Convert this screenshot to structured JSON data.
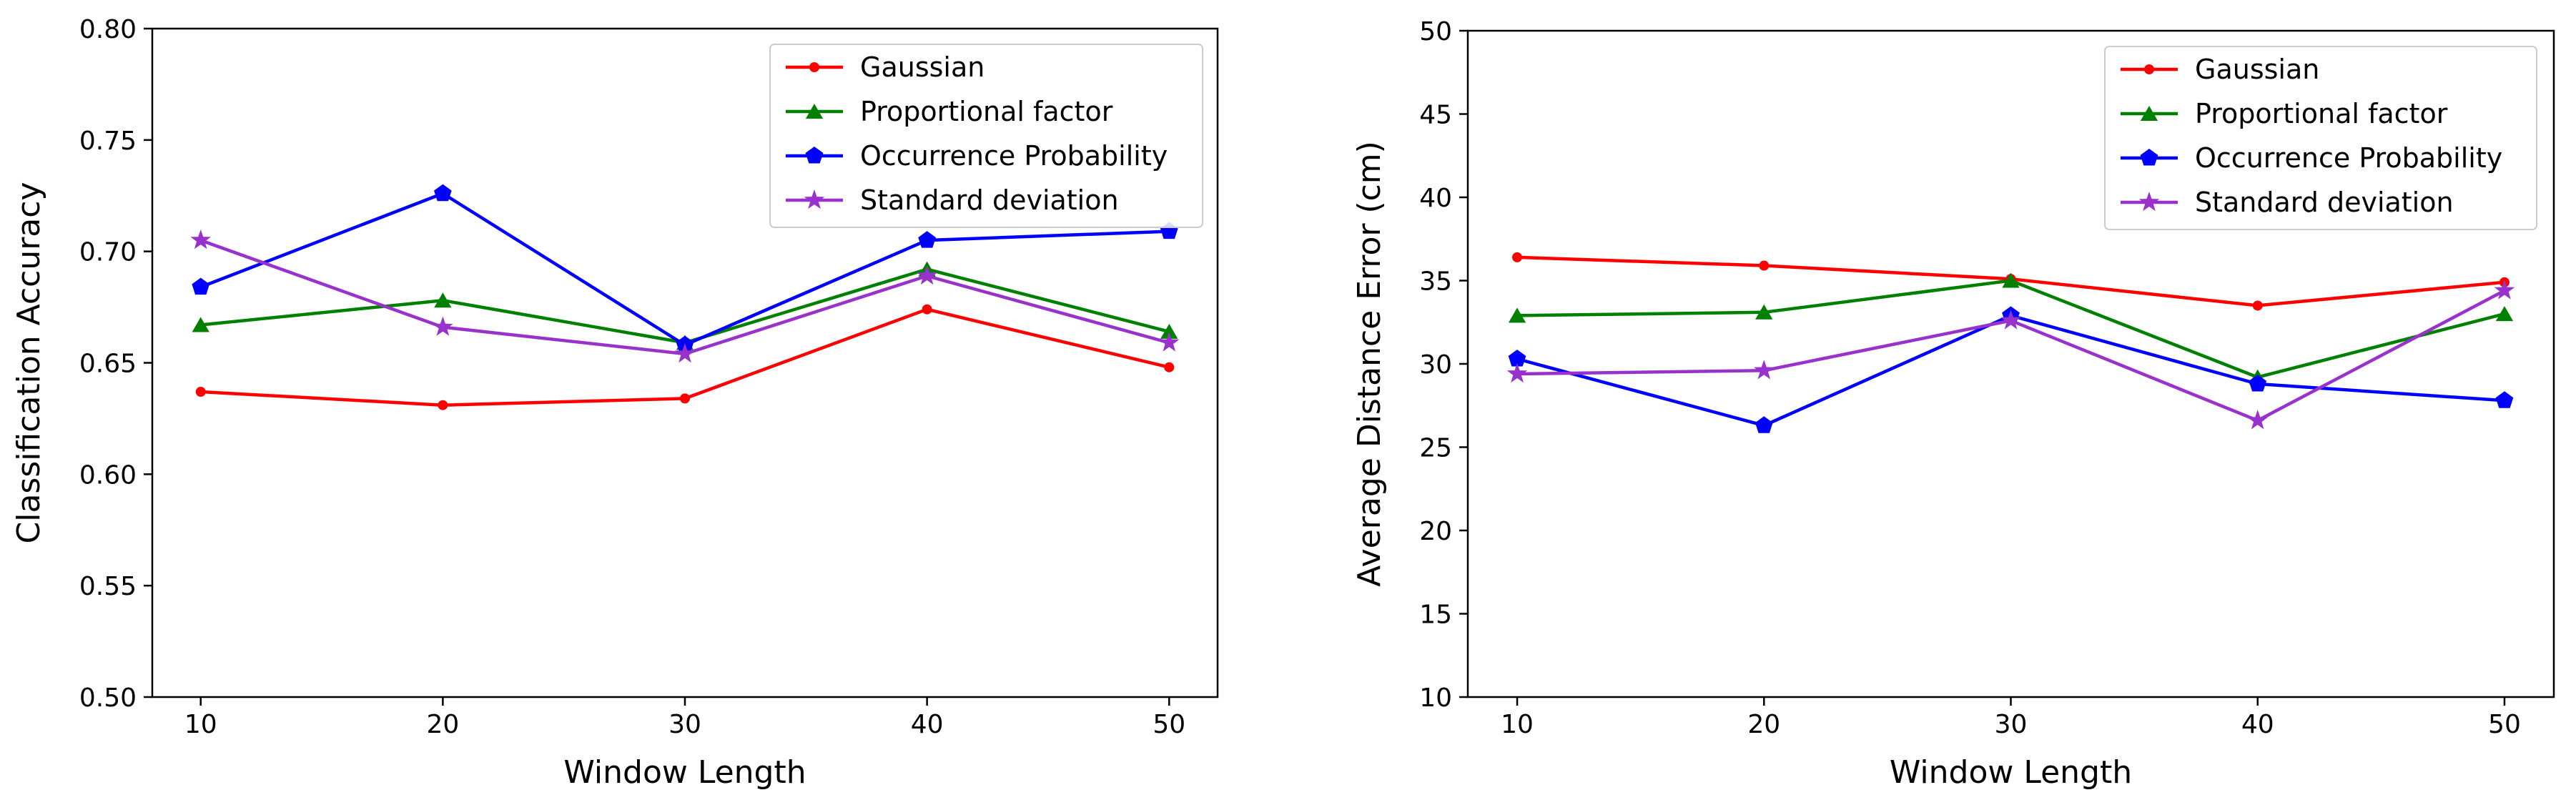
{
  "chart_data": [
    {
      "type": "line",
      "title": "",
      "xlabel": "Window Length",
      "ylabel": "Classification Accuracy",
      "x": [
        10,
        20,
        30,
        40,
        50
      ],
      "xticks": [
        "10",
        "20",
        "30",
        "40",
        "50"
      ],
      "xlim": [
        8,
        52
      ],
      "ylim": [
        0.5,
        0.8
      ],
      "yticks": [
        "0.50",
        "0.55",
        "0.60",
        "0.65",
        "0.70",
        "0.75",
        "0.80"
      ],
      "grid": false,
      "legend_position": "top-right",
      "series": [
        {
          "name": "Gaussian",
          "color": "#ff0000",
          "marker": "circle",
          "values": [
            0.637,
            0.631,
            0.634,
            0.674,
            0.648
          ]
        },
        {
          "name": "Proportional factor",
          "color": "#008000",
          "marker": "triangle",
          "values": [
            0.667,
            0.678,
            0.659,
            0.692,
            0.664
          ]
        },
        {
          "name": "Occurrence Probability",
          "color": "#0000ff",
          "marker": "pentagon",
          "values": [
            0.684,
            0.726,
            0.658,
            0.705,
            0.709
          ]
        },
        {
          "name": "Standard deviation",
          "color": "#9932cc",
          "marker": "star",
          "values": [
            0.705,
            0.666,
            0.654,
            0.689,
            0.659
          ]
        }
      ]
    },
    {
      "type": "line",
      "title": "",
      "xlabel": "Window Length",
      "ylabel": "Average Distance Error (cm)",
      "x": [
        10,
        20,
        30,
        40,
        50
      ],
      "xticks": [
        "10",
        "20",
        "30",
        "40",
        "50"
      ],
      "xlim": [
        8,
        52
      ],
      "ylim": [
        10,
        50
      ],
      "yticks": [
        "10",
        "15",
        "20",
        "25",
        "30",
        "35",
        "40",
        "45",
        "50"
      ],
      "grid": false,
      "legend_position": "top-right",
      "series": [
        {
          "name": "Gaussian",
          "color": "#ff0000",
          "marker": "circle",
          "values": [
            36.4,
            35.9,
            35.1,
            33.5,
            34.9
          ]
        },
        {
          "name": "Proportional factor",
          "color": "#008000",
          "marker": "triangle",
          "values": [
            32.9,
            33.1,
            35.0,
            29.2,
            33.0
          ]
        },
        {
          "name": "Occurrence Probability",
          "color": "#0000ff",
          "marker": "pentagon",
          "values": [
            30.3,
            26.3,
            32.9,
            28.8,
            27.8
          ]
        },
        {
          "name": "Standard deviation",
          "color": "#9932cc",
          "marker": "star",
          "values": [
            29.4,
            29.6,
            32.6,
            26.6,
            34.4
          ]
        }
      ]
    }
  ]
}
